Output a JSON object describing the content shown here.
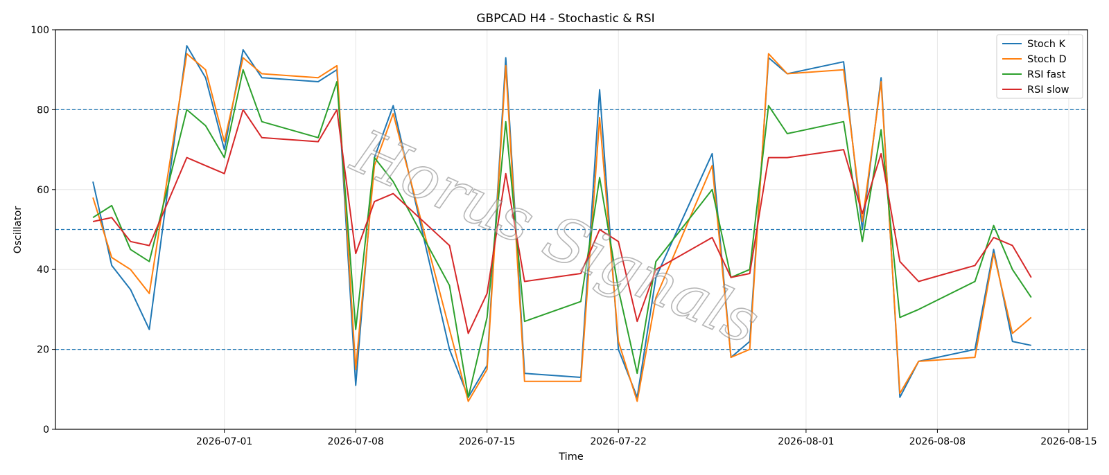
{
  "chart_data": {
    "type": "line",
    "title": "GBPCAD H4 - Stochastic & RSI",
    "xlabel": "Time",
    "ylabel": "Oscillator",
    "ylim": [
      0,
      100
    ],
    "xlim": [
      "2026-06-22",
      "2026-08-16"
    ],
    "yticks": [
      0,
      20,
      40,
      60,
      80,
      100
    ],
    "xticks": [
      "2026-07-01",
      "2026-07-08",
      "2026-07-15",
      "2026-07-22",
      "2026-08-01",
      "2026-08-08",
      "2026-08-15"
    ],
    "reference_lines": [
      20,
      50,
      80
    ],
    "grid": true,
    "legend": "top-right",
    "watermark": "Horus Signals",
    "x": [
      "2026-06-24",
      "2026-06-25",
      "2026-06-26",
      "2026-06-27",
      "2026-06-29",
      "2026-06-30",
      "2026-07-01",
      "2026-07-02",
      "2026-07-03",
      "2026-07-06",
      "2026-07-07",
      "2026-07-08",
      "2026-07-09",
      "2026-07-10",
      "2026-07-13",
      "2026-07-14",
      "2026-07-15",
      "2026-07-16",
      "2026-07-17",
      "2026-07-20",
      "2026-07-21",
      "2026-07-22",
      "2026-07-23",
      "2026-07-24",
      "2026-07-27",
      "2026-07-28",
      "2026-07-29",
      "2026-07-30",
      "2026-07-31",
      "2026-08-03",
      "2026-08-04",
      "2026-08-05",
      "2026-08-06",
      "2026-08-07",
      "2026-08-10",
      "2026-08-11",
      "2026-08-12",
      "2026-08-13"
    ],
    "series": [
      {
        "name": "Stoch K",
        "color": "#1f77b4",
        "values": [
          62,
          41,
          35,
          25,
          96,
          88,
          70,
          95,
          88,
          87,
          90,
          11,
          68,
          81,
          20,
          8,
          16,
          93,
          14,
          13,
          85,
          20,
          8,
          38,
          69,
          18,
          22,
          93,
          89,
          92,
          50,
          88,
          8,
          17,
          20,
          45,
          22,
          21
        ]
      },
      {
        "name": "Stoch D",
        "color": "#ff7f0e",
        "values": [
          58,
          43,
          40,
          34,
          94,
          90,
          72,
          93,
          89,
          88,
          91,
          15,
          66,
          79,
          25,
          7,
          15,
          91,
          12,
          12,
          78,
          22,
          7,
          33,
          66,
          18,
          20,
          94,
          89,
          90,
          52,
          87,
          9,
          17,
          18,
          44,
          24,
          28
        ]
      },
      {
        "name": "RSI fast",
        "color": "#2ca02c",
        "values": [
          53,
          56,
          45,
          42,
          80,
          76,
          68,
          90,
          77,
          73,
          87,
          25,
          68,
          62,
          36,
          8,
          28,
          77,
          27,
          32,
          63,
          35,
          14,
          42,
          60,
          38,
          40,
          81,
          74,
          77,
          47,
          75,
          28,
          30,
          37,
          51,
          40,
          33
        ]
      },
      {
        "name": "RSI slow",
        "color": "#d62728",
        "values": [
          52,
          53,
          47,
          46,
          68,
          66,
          64,
          80,
          73,
          72,
          80,
          44,
          57,
          59,
          46,
          24,
          34,
          64,
          37,
          39,
          50,
          47,
          27,
          40,
          48,
          38,
          39,
          68,
          68,
          70,
          54,
          69,
          42,
          37,
          41,
          48,
          46,
          38
        ]
      }
    ]
  }
}
